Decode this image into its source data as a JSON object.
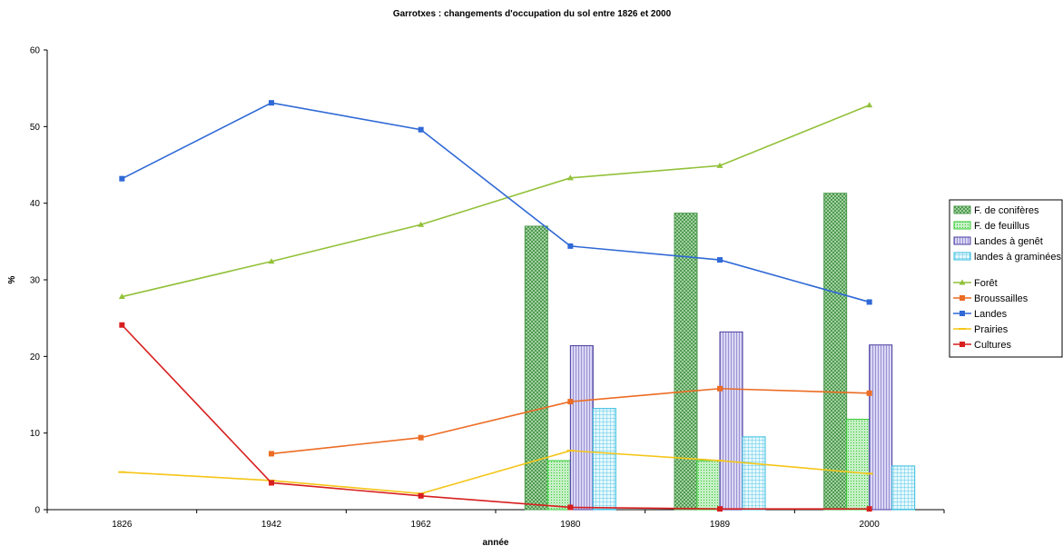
{
  "chart_data": {
    "type": "bar+line",
    "title": "Garrotxes : changements d'occupation du sol entre 1826 et 2000",
    "xlabel": "année",
    "ylabel": "%",
    "ylim": [
      0,
      60
    ],
    "yticks": [
      0,
      10,
      20,
      30,
      40,
      50,
      60
    ],
    "categories": [
      "1826",
      "1942",
      "1962",
      "1980",
      "1989",
      "2000"
    ],
    "grid": false,
    "legend_position": "right",
    "bar_series": [
      {
        "name": "F. de conifères",
        "color": "#4a9a4a",
        "fill": "#b8e0b8",
        "pattern": "crosshatch",
        "values": [
          null,
          null,
          null,
          37,
          38.7,
          41.3
        ]
      },
      {
        "name": "F. de feuillus",
        "color": "#33cc33",
        "fill": "#c6efc6",
        "pattern": "dots",
        "values": [
          null,
          null,
          null,
          6.4,
          6.4,
          11.8
        ]
      },
      {
        "name": "Landes à genêt",
        "color": "#4b3fa0",
        "fill": "#dad6f3",
        "pattern": "vertical",
        "values": [
          null,
          null,
          null,
          21.4,
          23.2,
          21.5
        ]
      },
      {
        "name": "landes à graminées",
        "color": "#33bbdd",
        "fill": "#d2f1fa",
        "pattern": "grid",
        "values": [
          null,
          null,
          null,
          13.2,
          9.5,
          5.7
        ]
      }
    ],
    "line_series": [
      {
        "name": "Forêt",
        "color": "#92c13a",
        "marker": "triangle",
        "values": [
          27.8,
          32.4,
          37.2,
          43.3,
          44.9,
          52.8
        ]
      },
      {
        "name": "Broussailles",
        "color": "#ec6c24",
        "marker": "square",
        "values": [
          null,
          7.3,
          9.4,
          14.1,
          15.8,
          15.2
        ]
      },
      {
        "name": "Landes",
        "color": "#2f69d6",
        "marker": "square",
        "values": [
          43.2,
          53.1,
          49.6,
          34.4,
          32.6,
          27.1
        ]
      },
      {
        "name": "Prairies",
        "color": "#f5c518",
        "marker": "dash",
        "values": [
          4.9,
          3.8,
          2.1,
          7.7,
          6.4,
          4.7
        ]
      },
      {
        "name": "Cultures",
        "color": "#d81f1f",
        "marker": "square",
        "values": [
          24.1,
          3.5,
          1.8,
          0.3,
          0.1,
          0.1
        ]
      }
    ]
  }
}
